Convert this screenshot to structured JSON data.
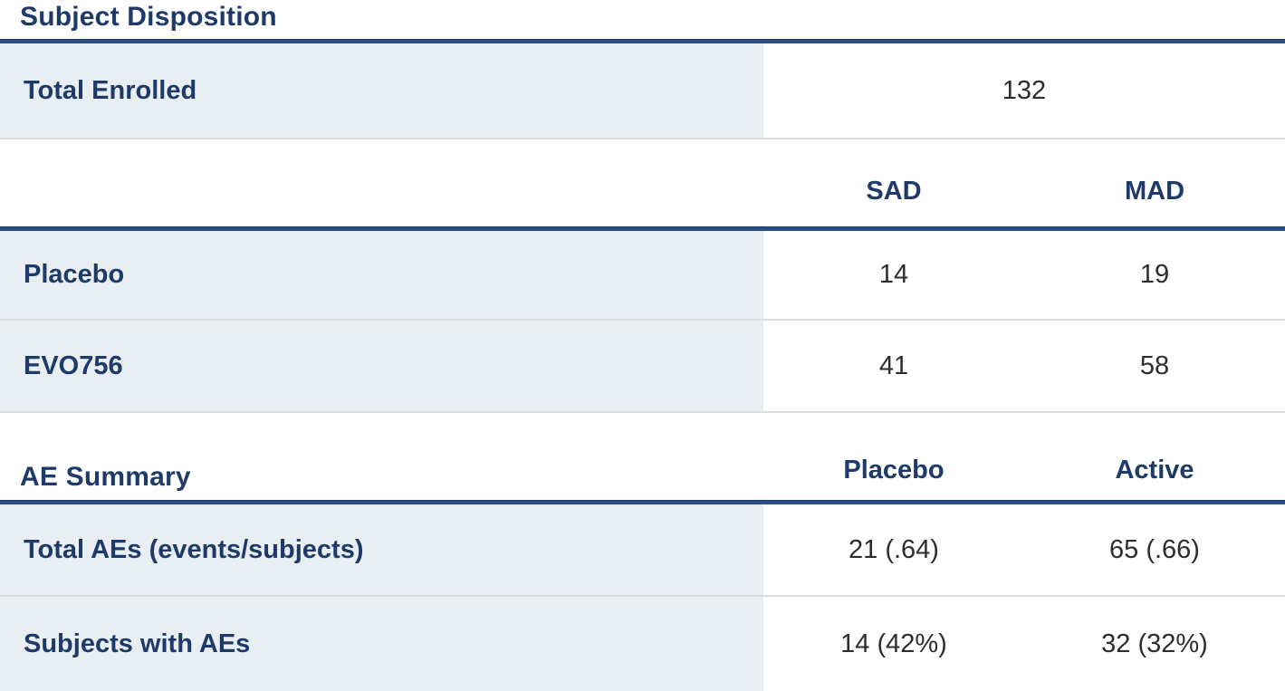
{
  "colors": {
    "navy_text": "#1e3a68",
    "navy_rule": "#2b4d86",
    "label_row_bg": "#e9eef3",
    "separator": "#d8dcdf",
    "value_text": "#2d2d2d"
  },
  "chart_data": [
    {
      "type": "table",
      "title": "Subject Disposition",
      "columns": [
        "SAD",
        "MAD"
      ],
      "total_enrolled": {
        "label": "Total Enrolled",
        "value": "132"
      },
      "rows": [
        {
          "label": "Placebo",
          "values": [
            "14",
            "19"
          ]
        },
        {
          "label": "EVO756",
          "values": [
            "41",
            "58"
          ]
        }
      ]
    },
    {
      "type": "table",
      "title": "AE Summary",
      "columns": [
        "Placebo",
        "Active"
      ],
      "rows": [
        {
          "label": "Total AEs (events/subjects)",
          "values": [
            "21 (.64)",
            "65 (.66)"
          ]
        },
        {
          "label": "Subjects with AEs",
          "values": [
            "14 (42%)",
            "32 (32%)"
          ]
        }
      ]
    }
  ]
}
